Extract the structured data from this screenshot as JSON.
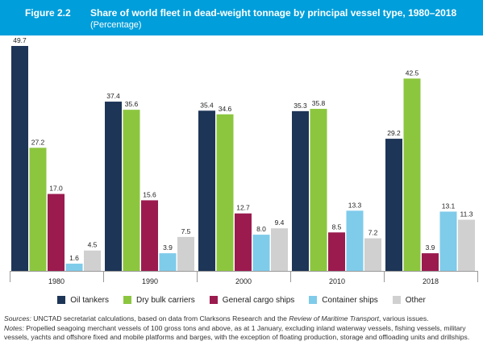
{
  "header": {
    "figure_label": "Figure 2.2",
    "title": "Share of world fleet in dead-weight tonnage by principal vessel type, 1980–2018",
    "subtitle": "(Percentage)"
  },
  "colors": {
    "header_bg": "#009edb",
    "oil_tankers": "#1d3557",
    "dry_bulk": "#8cc63f",
    "general_cargo": "#9b1b4f",
    "container": "#7fcbea",
    "other": "#d0d0d0"
  },
  "chart_data": {
    "type": "bar",
    "title": "Share of world fleet in dead-weight tonnage by principal vessel type, 1980–2018",
    "xlabel": "",
    "ylabel": "",
    "ylim": [
      0,
      50
    ],
    "grid": false,
    "legend_position": "bottom",
    "categories": [
      "1980",
      "1990",
      "2000",
      "2010",
      "2018"
    ],
    "series": [
      {
        "name": "Oil tankers",
        "color": "#1d3557",
        "values": [
          49.7,
          37.4,
          35.4,
          35.3,
          29.2
        ]
      },
      {
        "name": "Dry bulk carriers",
        "color": "#8cc63f",
        "values": [
          27.2,
          35.6,
          34.6,
          35.8,
          42.5
        ]
      },
      {
        "name": "General cargo ships",
        "color": "#9b1b4f",
        "values": [
          17.0,
          15.6,
          12.7,
          8.5,
          3.9
        ]
      },
      {
        "name": "Container ships",
        "color": "#7fcbea",
        "values": [
          1.6,
          3.9,
          8.0,
          13.3,
          13.1
        ]
      },
      {
        "name": "Other",
        "color": "#d0d0d0",
        "values": [
          4.5,
          7.5,
          9.4,
          7.2,
          11.3
        ]
      }
    ],
    "value_labels": [
      [
        "49.7",
        "37.4",
        "35.4",
        "35.3",
        "29.2"
      ],
      [
        "27.2",
        "35.6",
        "34.6",
        "35.8",
        "42.5"
      ],
      [
        "17.0",
        "15.6",
        "12.7",
        "8.5",
        "3.9"
      ],
      [
        "1.6",
        "3.9",
        "8.0",
        "13.3",
        "13.1"
      ],
      [
        "4.5",
        "7.5",
        "9.4",
        "7.2",
        "11.3"
      ]
    ]
  },
  "notes": {
    "sources_label": "Sources:",
    "sources_text_1": " UNCTAD secretariat calculations, based on data from Clarksons Research and the ",
    "sources_italic": "Review of Maritime Transport",
    "sources_text_2": ", various issues.",
    "notes_label": "Notes:",
    "notes_text": " Propelled seagoing merchant vessels of 100 gross tons and above, as at 1 January, excluding inland waterway vessels, fishing vessels, military vessels, yachts and offshore fixed and mobile platforms and barges, with the exception of floating production, storage and offloading units and drillships."
  }
}
